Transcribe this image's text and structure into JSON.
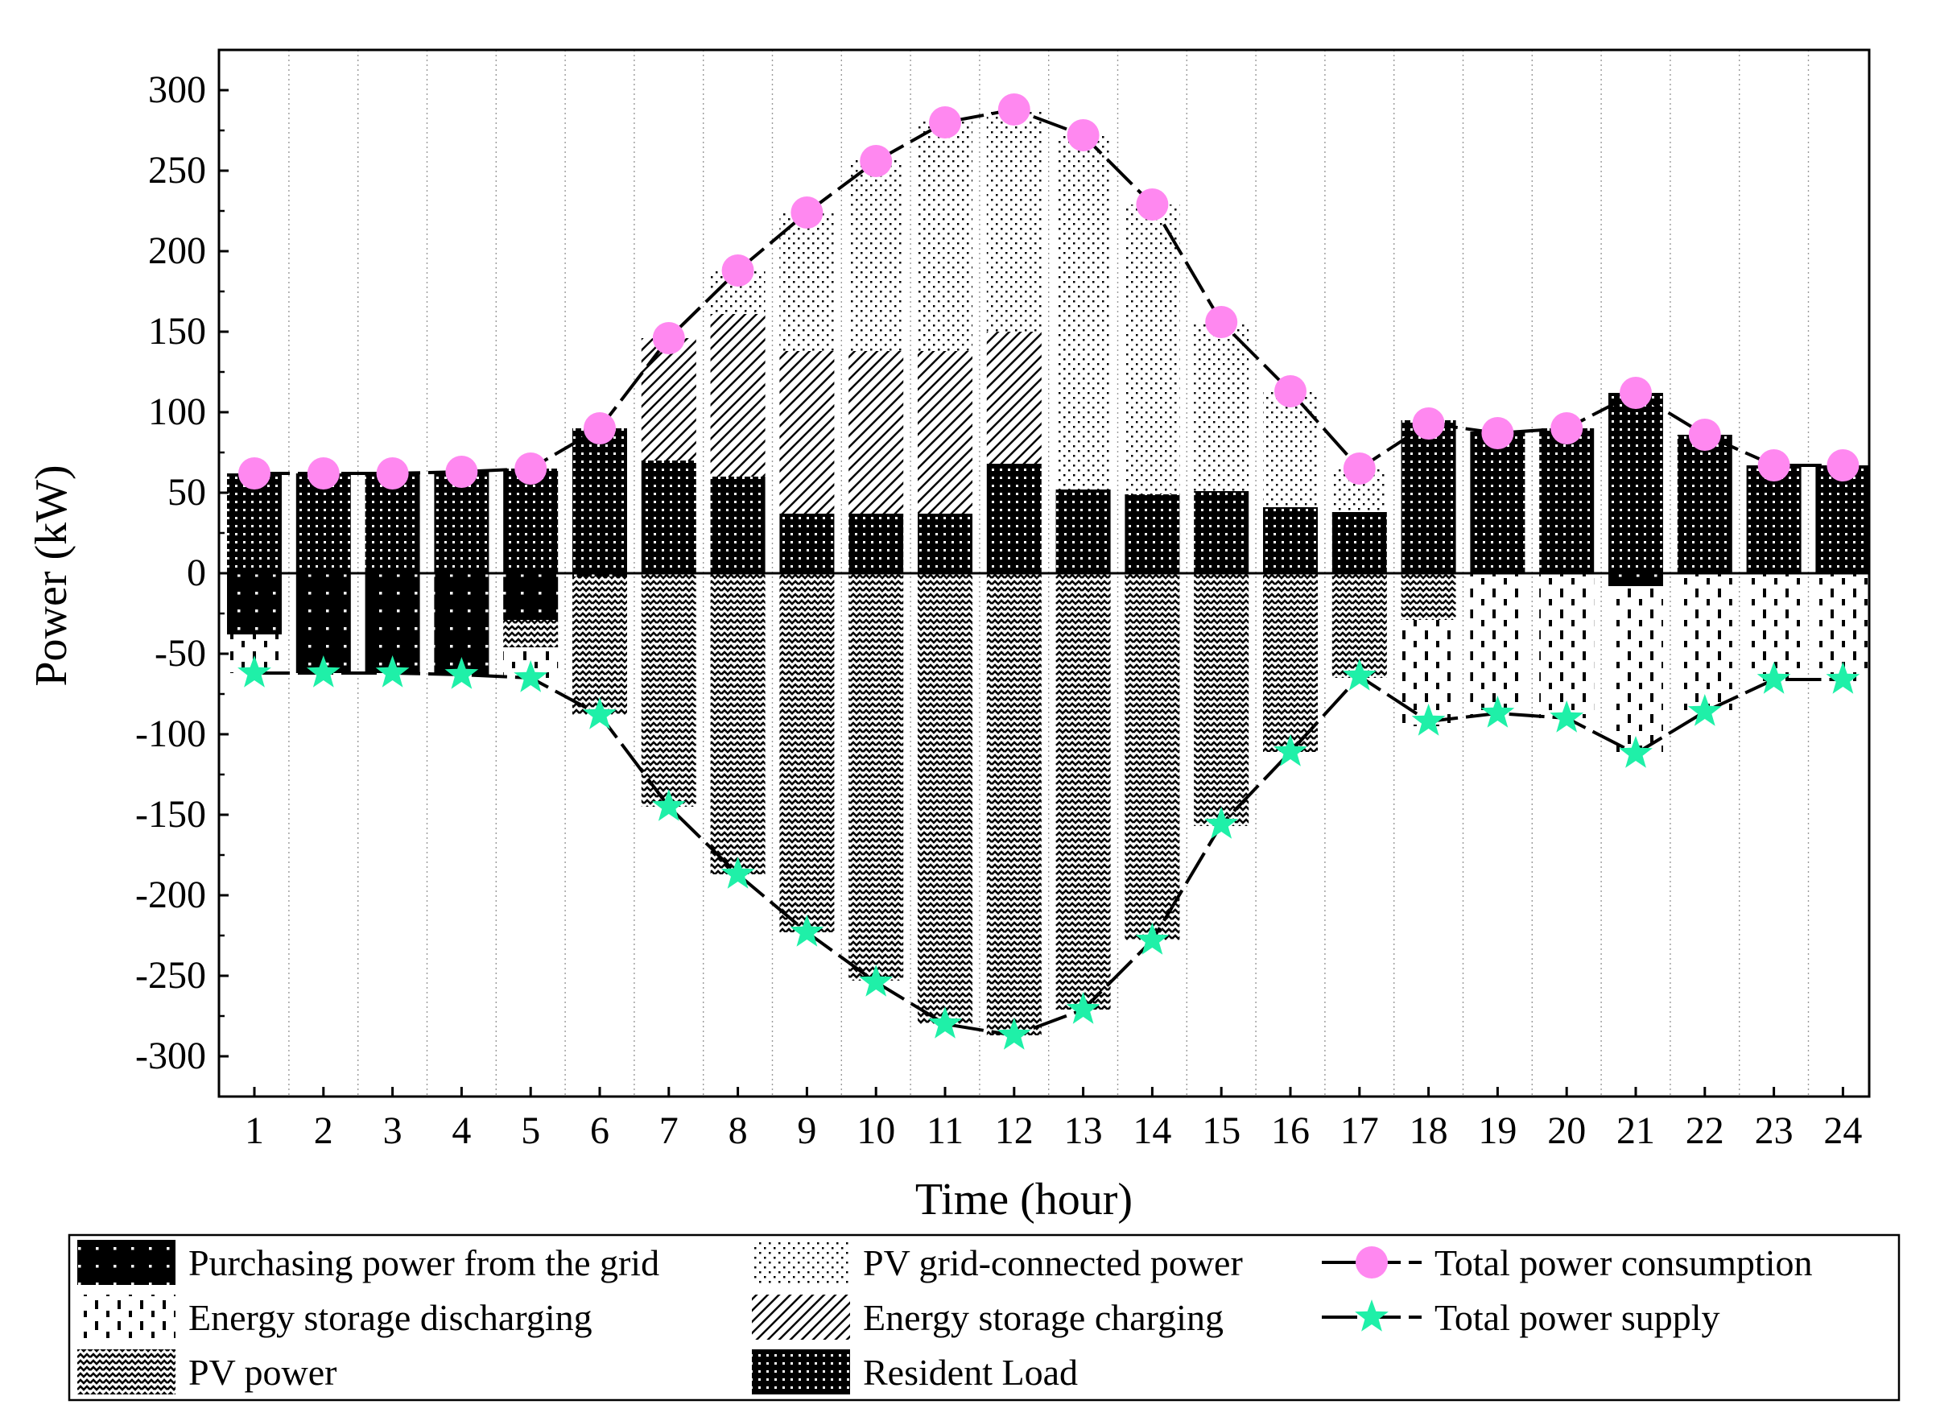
{
  "chart_data": {
    "type": "bar",
    "xlabel": "Time (hour)",
    "ylabel": "Power (kW)",
    "ylim": [
      -325,
      325
    ],
    "yticks": [
      300,
      250,
      200,
      150,
      100,
      50,
      0,
      -50,
      -100,
      -150,
      -200,
      -250,
      -300
    ],
    "categories": [
      "1",
      "2",
      "3",
      "4",
      "5",
      "6",
      "7",
      "8",
      "9",
      "10",
      "11",
      "12",
      "13",
      "14",
      "15",
      "16",
      "17",
      "18",
      "19",
      "20",
      "21",
      "22",
      "23",
      "24"
    ],
    "grid": "vertical-dotted",
    "stacking": "positive bars stacked upward from 0, negative bars stacked downward from 0",
    "series": [
      {
        "name": "Resident Load",
        "kind": "bar",
        "pattern": "resident",
        "values": [
          62,
          62,
          62,
          63,
          65,
          90,
          70,
          60,
          37,
          37,
          37,
          68,
          52,
          49,
          51,
          41,
          38,
          95,
          88,
          90,
          112,
          86,
          67,
          67
        ]
      },
      {
        "name": "Energy storage charging",
        "kind": "bar",
        "pattern": "hatch",
        "values": [
          0,
          0,
          0,
          0,
          0,
          0,
          76,
          101,
          101,
          101,
          101,
          82,
          0,
          0,
          0,
          0,
          0,
          0,
          0,
          0,
          0,
          0,
          0,
          0
        ]
      },
      {
        "name": "PV grid-connected power",
        "kind": "bar",
        "pattern": "dots",
        "values": [
          0,
          0,
          0,
          0,
          0,
          0,
          0,
          27,
          87,
          120,
          143,
          138,
          220,
          180,
          105,
          72,
          27,
          0,
          0,
          0,
          0,
          0,
          0,
          0
        ]
      },
      {
        "name": "Purchasing power from the grid",
        "kind": "bar",
        "pattern": "purchase",
        "values": [
          -38,
          -62,
          -62,
          -63,
          -29,
          -2,
          0,
          0,
          0,
          0,
          0,
          0,
          0,
          0,
          0,
          0,
          0,
          0,
          0,
          0,
          -8,
          0,
          0,
          0
        ]
      },
      {
        "name": "PV power",
        "kind": "bar",
        "pattern": "zigzag",
        "values": [
          0,
          0,
          0,
          0,
          -17,
          -86,
          -145,
          -187,
          -223,
          -253,
          -280,
          -287,
          -271,
          -228,
          -157,
          -111,
          -65,
          -29,
          0,
          0,
          0,
          0,
          0,
          0
        ]
      },
      {
        "name": "Energy storage discharging",
        "kind": "bar",
        "pattern": "dashes",
        "values": [
          -24,
          0,
          0,
          0,
          -19,
          0,
          0,
          0,
          0,
          0,
          0,
          0,
          0,
          0,
          0,
          0,
          0,
          -66,
          -88,
          -90,
          -104,
          -86,
          -67,
          -67
        ]
      },
      {
        "name": "Total power consumption",
        "kind": "line",
        "marker": "circle",
        "color": "#FF88F0",
        "values": [
          62,
          62,
          62,
          63,
          65,
          90,
          146,
          188,
          224,
          256,
          280,
          288,
          272,
          229,
          156,
          113,
          65,
          93,
          87,
          90,
          112,
          86,
          67,
          67
        ]
      },
      {
        "name": "Total power supply",
        "kind": "line",
        "marker": "star",
        "color": "#1FF0A8",
        "values": [
          -62,
          -62,
          -62,
          -63,
          -65,
          -88,
          -145,
          -187,
          -223,
          -254,
          -280,
          -287,
          -271,
          -228,
          -156,
          -111,
          -64,
          -92,
          -87,
          -90,
          -112,
          -86,
          -66,
          -66
        ]
      }
    ],
    "legend": {
      "position": "bottom",
      "columns": [
        [
          "Purchasing power from the grid",
          "Energy storage discharging",
          "PV power"
        ],
        [
          "PV grid-connected power",
          "Energy storage charging",
          "Resident Load"
        ],
        [
          "Total power consumption",
          "Total power supply"
        ]
      ]
    }
  }
}
